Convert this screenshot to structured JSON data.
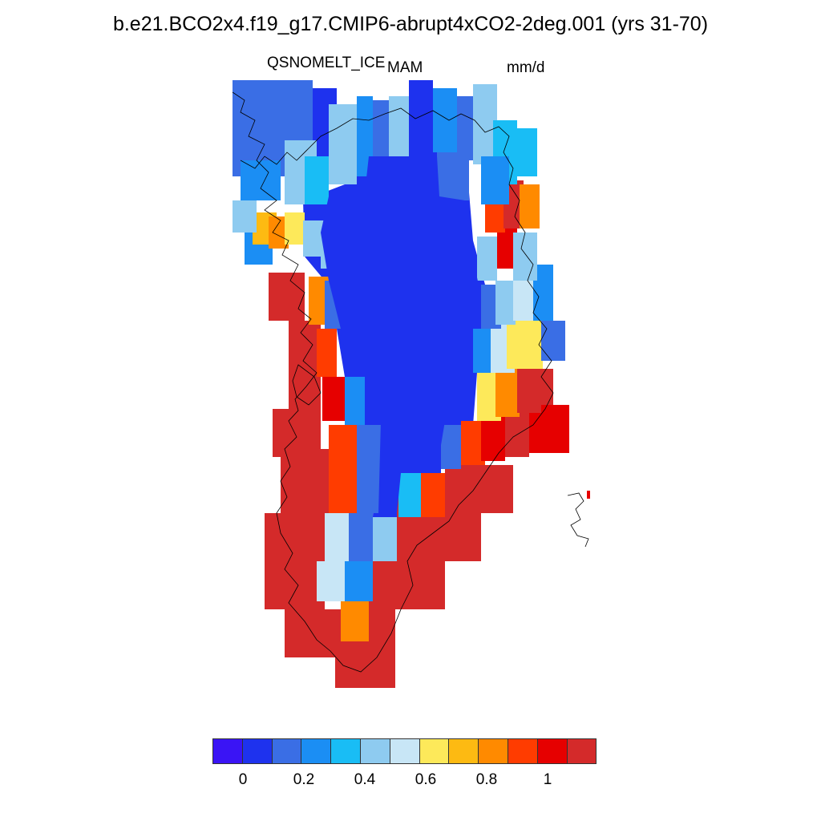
{
  "title": "b.e21.BCO2x4.f19_g17.CMIP6-abrupt4xCO2-2deg.001 (yrs 31-70)",
  "variable": "QSNOMELT_ICE",
  "season": "MAM",
  "units": "mm/d",
  "colorbar": {
    "colors": [
      "#3a14f5",
      "#1e32ee",
      "#3a6ee5",
      "#1b8ef4",
      "#19bdf5",
      "#8ecbf0",
      "#c8e6f6",
      "#fde95a",
      "#fdba12",
      "#ff8a00",
      "#ff3c00",
      "#e60000",
      "#d42a2a"
    ],
    "tick_labels": [
      "0",
      "0.2",
      "0.4",
      "0.6",
      "0.8",
      "1"
    ],
    "tick_values": [
      0,
      0.2,
      0.4,
      0.6,
      0.8,
      1.0
    ],
    "levels": [
      -0.1,
      0,
      0.1,
      0.2,
      0.3,
      0.4,
      0.5,
      0.6,
      0.7,
      0.8,
      0.9,
      1.0,
      1.1
    ]
  }
}
